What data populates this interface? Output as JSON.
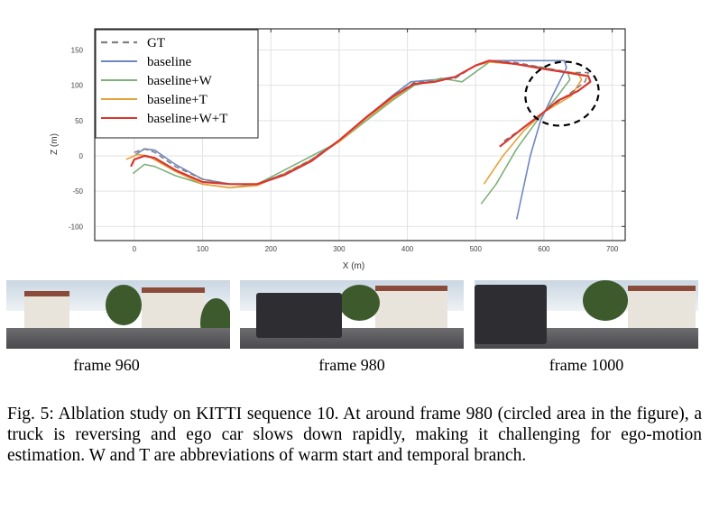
{
  "chart_data": {
    "type": "line",
    "xlabel": "X (m)",
    "ylabel": "Z (m)",
    "xlim": [
      -58,
      719
    ],
    "ylim": [
      -120,
      180
    ],
    "xticks": [
      0,
      100,
      200,
      300,
      400,
      500,
      600,
      700
    ],
    "yticks": [
      150,
      100,
      50,
      0,
      -50,
      -100
    ],
    "grid": true,
    "legend_position": "top-left",
    "annotation": "dashed circle around frame 980 region",
    "series": [
      {
        "name": "GT",
        "color": "#7f7f7f",
        "dashed": true,
        "points": [
          [
            0,
            5
          ],
          [
            15,
            10
          ],
          [
            30,
            5
          ],
          [
            60,
            -15
          ],
          [
            100,
            -33
          ],
          [
            140,
            -40
          ],
          [
            180,
            -40
          ],
          [
            220,
            -25
          ],
          [
            260,
            -5
          ],
          [
            300,
            22
          ],
          [
            340,
            55
          ],
          [
            380,
            85
          ],
          [
            410,
            104
          ],
          [
            440,
            106
          ],
          [
            470,
            110
          ],
          [
            500,
            128
          ],
          [
            520,
            135
          ],
          [
            560,
            132
          ],
          [
            600,
            125
          ],
          [
            640,
            118
          ],
          [
            665,
            118
          ],
          [
            660,
            105
          ],
          [
            640,
            90
          ],
          [
            600,
            62
          ],
          [
            570,
            40
          ],
          [
            540,
            20
          ]
        ]
      },
      {
        "name": "baseline",
        "color": "#6f86c0",
        "dashed": false,
        "points": [
          [
            2,
            2
          ],
          [
            15,
            10
          ],
          [
            30,
            8
          ],
          [
            60,
            -12
          ],
          [
            100,
            -33
          ],
          [
            140,
            -40
          ],
          [
            180,
            -40
          ],
          [
            220,
            -25
          ],
          [
            260,
            -5
          ],
          [
            300,
            22
          ],
          [
            340,
            55
          ],
          [
            380,
            87
          ],
          [
            405,
            105
          ],
          [
            440,
            108
          ],
          [
            470,
            112
          ],
          [
            500,
            128
          ],
          [
            520,
            135
          ],
          [
            560,
            135
          ],
          [
            630,
            135
          ],
          [
            633,
            125
          ],
          [
            615,
            90
          ],
          [
            595,
            50
          ],
          [
            580,
            0
          ],
          [
            560,
            -90
          ]
        ]
      },
      {
        "name": "baseline+W",
        "color": "#7fb07a",
        "dashed": false,
        "points": [
          [
            -2,
            -25
          ],
          [
            15,
            -12
          ],
          [
            30,
            -15
          ],
          [
            60,
            -28
          ],
          [
            100,
            -40
          ],
          [
            140,
            -45
          ],
          [
            180,
            -40
          ],
          [
            220,
            -20
          ],
          [
            260,
            0
          ],
          [
            300,
            20
          ],
          [
            340,
            50
          ],
          [
            380,
            80
          ],
          [
            410,
            100
          ],
          [
            450,
            110
          ],
          [
            480,
            105
          ],
          [
            520,
            133
          ],
          [
            560,
            130
          ],
          [
            600,
            125
          ],
          [
            635,
            118
          ],
          [
            638,
            108
          ],
          [
            620,
            85
          ],
          [
            590,
            50
          ],
          [
            560,
            10
          ],
          [
            530,
            -40
          ],
          [
            508,
            -68
          ]
        ]
      },
      {
        "name": "baseline+T",
        "color": "#e5a23a",
        "dashed": false,
        "points": [
          [
            -12,
            -5
          ],
          [
            5,
            2
          ],
          [
            20,
            0
          ],
          [
            60,
            -22
          ],
          [
            100,
            -40
          ],
          [
            140,
            -45
          ],
          [
            180,
            -42
          ],
          [
            220,
            -25
          ],
          [
            260,
            -5
          ],
          [
            300,
            20
          ],
          [
            340,
            53
          ],
          [
            380,
            82
          ],
          [
            410,
            102
          ],
          [
            440,
            105
          ],
          [
            470,
            112
          ],
          [
            500,
            128
          ],
          [
            520,
            133
          ],
          [
            560,
            130
          ],
          [
            600,
            123
          ],
          [
            650,
            117
          ],
          [
            655,
            108
          ],
          [
            640,
            85
          ],
          [
            600,
            62
          ],
          [
            570,
            35
          ],
          [
            540,
            0
          ],
          [
            512,
            -40
          ]
        ]
      },
      {
        "name": "baseline+W+T",
        "color": "#d9362f",
        "dashed": false,
        "points": [
          [
            -5,
            -15
          ],
          [
            0,
            -5
          ],
          [
            15,
            0
          ],
          [
            30,
            -3
          ],
          [
            60,
            -20
          ],
          [
            100,
            -37
          ],
          [
            140,
            -40
          ],
          [
            180,
            -40
          ],
          [
            220,
            -27
          ],
          [
            260,
            -7
          ],
          [
            300,
            22
          ],
          [
            340,
            55
          ],
          [
            380,
            85
          ],
          [
            410,
            102
          ],
          [
            440,
            105
          ],
          [
            470,
            112
          ],
          [
            500,
            128
          ],
          [
            520,
            135
          ],
          [
            560,
            130
          ],
          [
            600,
            123
          ],
          [
            640,
            117
          ],
          [
            665,
            113
          ],
          [
            668,
            105
          ],
          [
            650,
            92
          ],
          [
            620,
            78
          ],
          [
            600,
            62
          ],
          [
            570,
            40
          ],
          [
            535,
            13
          ]
        ]
      }
    ]
  },
  "frames": [
    {
      "label": "frame 960"
    },
    {
      "label": "frame 980"
    },
    {
      "label": "frame 1000"
    }
  ],
  "caption": "Fig. 5: Alblation study on KITTI sequence 10. At around frame 980 (circled area in the figure), a truck is reversing and ego car slows down rapidly, making it challenging for ego-motion estimation. W and T are abbreviations of warm start and temporal branch."
}
